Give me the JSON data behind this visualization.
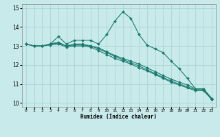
{
  "xlabel": "Humidex (Indice chaleur)",
  "ylabel": "",
  "bg_color": "#c8eaea",
  "grid_color": "#aad4d4",
  "line_color": "#1a7a6e",
  "xlim": [
    -0.5,
    23.5
  ],
  "ylim": [
    9.8,
    15.2
  ],
  "yticks": [
    10,
    11,
    12,
    13,
    14,
    15
  ],
  "xticks": [
    0,
    1,
    2,
    3,
    4,
    5,
    6,
    7,
    8,
    9,
    10,
    11,
    12,
    13,
    14,
    15,
    16,
    17,
    18,
    19,
    20,
    21,
    22,
    23
  ],
  "series": [
    [
      13.1,
      13.0,
      13.0,
      13.1,
      13.5,
      13.1,
      13.3,
      13.3,
      13.3,
      13.1,
      13.6,
      14.3,
      14.8,
      14.45,
      13.6,
      13.05,
      12.85,
      12.65,
      12.2,
      11.8,
      11.3,
      10.75,
      10.75,
      10.25
    ],
    [
      13.1,
      13.0,
      13.0,
      13.1,
      13.2,
      13.0,
      13.1,
      13.1,
      13.0,
      12.9,
      12.7,
      12.5,
      12.35,
      12.2,
      12.05,
      11.85,
      11.65,
      11.45,
      11.25,
      11.1,
      10.95,
      10.75,
      10.75,
      10.25
    ],
    [
      13.1,
      13.0,
      13.0,
      13.1,
      13.15,
      13.0,
      13.05,
      13.05,
      13.0,
      12.85,
      12.65,
      12.45,
      12.28,
      12.12,
      11.95,
      11.75,
      11.55,
      11.35,
      11.15,
      11.0,
      10.85,
      10.7,
      10.7,
      10.2
    ],
    [
      13.1,
      13.0,
      13.0,
      13.05,
      13.1,
      12.95,
      13.0,
      13.0,
      12.95,
      12.75,
      12.55,
      12.35,
      12.2,
      12.05,
      11.85,
      11.7,
      11.5,
      11.3,
      11.1,
      10.95,
      10.8,
      10.65,
      10.65,
      10.2
    ]
  ]
}
